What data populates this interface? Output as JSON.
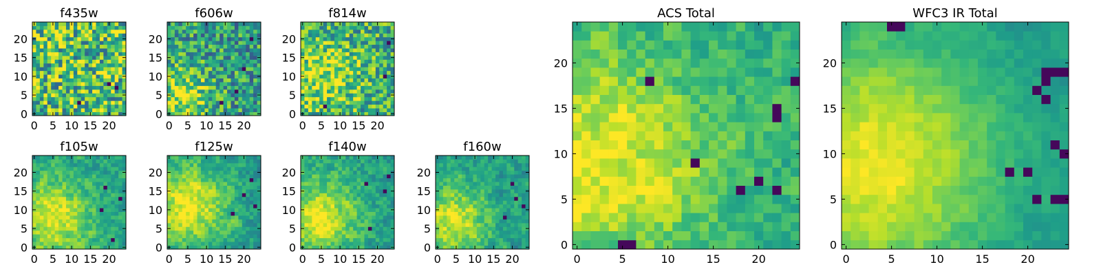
{
  "chart_data": [
    {
      "type": "heatmap",
      "title": "f435w",
      "xlabel": "",
      "ylabel": "",
      "grid_size": 25,
      "xlim": [
        -0.5,
        24.5
      ],
      "ylim": [
        -0.5,
        24.5
      ],
      "xticks": [
        0,
        5,
        10,
        15,
        20
      ],
      "yticks": [
        0,
        5,
        10,
        15,
        20
      ],
      "colormap": "viridis",
      "mean_level": 0.7,
      "noise": 0.38,
      "blob": null,
      "dark_spots": [
        [
          20,
          8
        ],
        [
          22,
          7
        ],
        [
          12,
          3
        ]
      ],
      "seed": 11
    },
    {
      "type": "heatmap",
      "title": "f606w",
      "xlabel": "",
      "ylabel": "",
      "grid_size": 25,
      "xlim": [
        -0.5,
        24.5
      ],
      "ylim": [
        -0.5,
        24.5
      ],
      "xticks": [
        0,
        5,
        10,
        15,
        20
      ],
      "yticks": [
        0,
        5,
        10,
        15,
        20
      ],
      "colormap": "viridis",
      "mean_level": 0.55,
      "noise": 0.3,
      "blob": {
        "cx": 3,
        "cy": 5,
        "r": 6,
        "amp": 0.35
      },
      "dark_spots": [
        [
          20,
          12
        ],
        [
          22,
          20
        ],
        [
          18,
          6
        ],
        [
          14,
          3
        ]
      ],
      "seed": 23
    },
    {
      "type": "heatmap",
      "title": "f814w",
      "xlabel": "",
      "ylabel": "",
      "grid_size": 25,
      "xlim": [
        -0.5,
        24.5
      ],
      "ylim": [
        -0.5,
        24.5
      ],
      "xticks": [
        0,
        5,
        10,
        15,
        20
      ],
      "yticks": [
        0,
        5,
        10,
        15,
        20
      ],
      "colormap": "viridis",
      "mean_level": 0.62,
      "noise": 0.3,
      "blob": {
        "cx": 6,
        "cy": 10,
        "r": 7,
        "amp": 0.25
      },
      "dark_spots": [
        [
          23,
          19
        ],
        [
          22,
          10
        ],
        [
          6,
          2
        ]
      ],
      "seed": 37
    },
    {
      "type": "heatmap",
      "title": "f105w",
      "xlabel": "",
      "ylabel": "",
      "grid_size": 25,
      "xlim": [
        -0.5,
        24.5
      ],
      "ylim": [
        -0.5,
        24.5
      ],
      "xticks": [
        0,
        5,
        10,
        15,
        20
      ],
      "yticks": [
        0,
        5,
        10,
        15,
        20
      ],
      "colormap": "viridis",
      "mean_level": 0.55,
      "noise": 0.22,
      "blob": {
        "cx": 5,
        "cy": 8,
        "r": 8,
        "amp": 0.4
      },
      "dark_spots": [
        [
          19,
          16
        ],
        [
          23,
          13
        ],
        [
          21,
          2
        ],
        [
          18,
          10
        ]
      ],
      "seed": 41
    },
    {
      "type": "heatmap",
      "title": "f125w",
      "xlabel": "",
      "ylabel": "",
      "grid_size": 25,
      "xlim": [
        -0.5,
        24.5
      ],
      "ylim": [
        -0.5,
        24.5
      ],
      "xticks": [
        0,
        5,
        10,
        15,
        20
      ],
      "yticks": [
        0,
        5,
        10,
        15,
        20
      ],
      "colormap": "viridis",
      "mean_level": 0.55,
      "noise": 0.22,
      "blob": {
        "cx": 5,
        "cy": 11,
        "r": 8,
        "amp": 0.4
      },
      "dark_spots": [
        [
          22,
          18
        ],
        [
          20,
          14
        ],
        [
          23,
          11
        ],
        [
          17,
          9
        ]
      ],
      "seed": 53
    },
    {
      "type": "heatmap",
      "title": "f140w",
      "xlabel": "",
      "ylabel": "",
      "grid_size": 25,
      "xlim": [
        -0.5,
        24.5
      ],
      "ylim": [
        -0.5,
        24.5
      ],
      "xticks": [
        0,
        5,
        10,
        15,
        20
      ],
      "yticks": [
        0,
        5,
        10,
        15,
        20
      ],
      "colormap": "viridis",
      "mean_level": 0.55,
      "noise": 0.22,
      "blob": {
        "cx": 4,
        "cy": 8,
        "r": 8,
        "amp": 0.4
      },
      "dark_spots": [
        [
          23,
          19
        ],
        [
          22,
          15
        ],
        [
          17,
          17
        ],
        [
          18,
          5
        ]
      ],
      "seed": 67
    },
    {
      "type": "heatmap",
      "title": "f160w",
      "xlabel": "",
      "ylabel": "",
      "grid_size": 25,
      "xlim": [
        -0.5,
        24.5
      ],
      "ylim": [
        -0.5,
        24.5
      ],
      "xticks": [
        0,
        5,
        10,
        15,
        20
      ],
      "yticks": [
        0,
        5,
        10,
        15,
        20
      ],
      "colormap": "viridis",
      "mean_level": 0.55,
      "noise": 0.22,
      "blob": {
        "cx": 4,
        "cy": 7,
        "r": 7,
        "amp": 0.4
      },
      "dark_spots": [
        [
          20,
          17
        ],
        [
          21,
          13
        ],
        [
          23,
          11
        ],
        [
          18,
          8
        ]
      ],
      "seed": 79
    },
    {
      "type": "heatmap",
      "title": "ACS Total",
      "xlabel": "",
      "ylabel": "",
      "grid_size": 25,
      "xlim": [
        -0.5,
        24.5
      ],
      "ylim": [
        -0.5,
        24.5
      ],
      "xticks": [
        0,
        5,
        10,
        15,
        20
      ],
      "yticks": [
        0,
        5,
        10,
        15,
        20
      ],
      "colormap": "viridis",
      "mean_level": 0.62,
      "noise": 0.2,
      "blob": {
        "cx": 2,
        "cy": 9,
        "r": 9,
        "amp": 0.35
      },
      "dark_spots": [
        [
          5,
          0
        ],
        [
          6,
          0
        ],
        [
          13,
          9
        ],
        [
          18,
          6
        ],
        [
          20,
          7
        ],
        [
          22,
          6
        ],
        [
          22,
          15
        ],
        [
          22,
          14
        ],
        [
          24,
          18
        ],
        [
          8,
          18
        ]
      ],
      "seed": 97
    },
    {
      "type": "heatmap",
      "title": "WFC3 IR Total",
      "xlabel": "",
      "ylabel": "",
      "grid_size": 25,
      "xlim": [
        -0.5,
        24.5
      ],
      "ylim": [
        -0.5,
        24.5
      ],
      "xticks": [
        0,
        5,
        10,
        15,
        20
      ],
      "yticks": [
        0,
        5,
        10,
        15,
        20
      ],
      "colormap": "viridis",
      "mean_level": 0.52,
      "noise": 0.1,
      "blob": {
        "cx": 3,
        "cy": 9,
        "r": 10,
        "amp": 0.45
      },
      "dark_spots": [
        [
          22,
          19
        ],
        [
          22,
          18
        ],
        [
          23,
          19
        ],
        [
          24,
          19
        ],
        [
          21,
          17
        ],
        [
          22,
          16
        ],
        [
          18,
          8
        ],
        [
          20,
          8
        ],
        [
          21,
          5
        ],
        [
          23,
          5
        ],
        [
          24,
          5
        ],
        [
          23,
          11
        ],
        [
          24,
          10
        ],
        [
          5,
          24
        ],
        [
          6,
          24
        ]
      ],
      "seed": 113
    }
  ]
}
